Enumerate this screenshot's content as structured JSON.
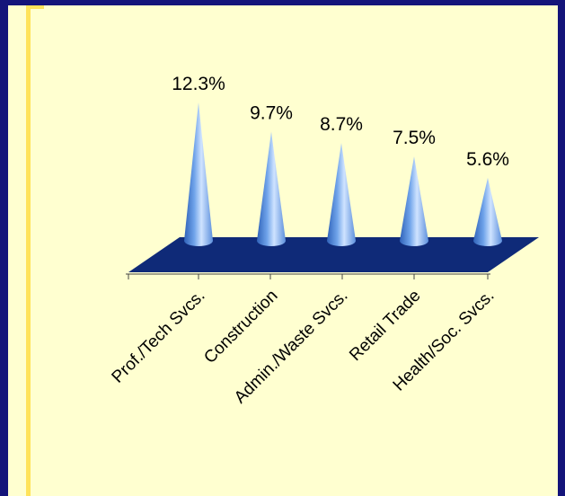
{
  "chart_data": {
    "type": "bar",
    "style": "3d-cone",
    "categories": [
      "Prof./Tech Svcs.",
      "Construction",
      "Admin./Waste Svcs.",
      "Retail Trade",
      "Health/Soc. Svcs."
    ],
    "values": [
      12.3,
      9.7,
      8.7,
      7.5,
      5.6
    ],
    "value_labels": [
      "12.3%",
      "9.7%",
      "8.7%",
      "7.5%",
      "5.6%"
    ],
    "title": "",
    "xlabel": "",
    "ylabel": "",
    "ylim": [
      0,
      12.3
    ],
    "grid": false,
    "legend": "none"
  },
  "colors": {
    "frame": "#14147a",
    "background": "#ffffd0",
    "floor": "#0f2a78",
    "cone_light": "#cfe3ff",
    "cone_mid": "#6fa3ea",
    "cone_dark": "#2f62b8"
  }
}
